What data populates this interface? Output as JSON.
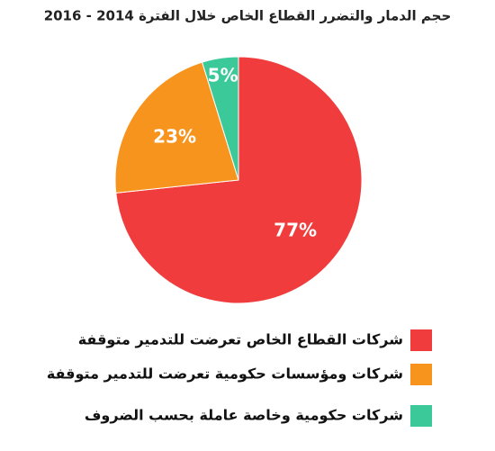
{
  "chart_data": {
    "type": "pie",
    "title": "حجم الدمار والتضرر القطاع الخاص خلال الفترة 2014 - 2016",
    "categories": [
      "شركات القطاع الخاص تعرضت للتدمير متوقفة",
      "شركات ومؤسسات حكومية تعرضت للتدمير متوقفة",
      "شركات حكومية وخاصة عاملة بحسب الضروف"
    ],
    "values": [
      77,
      23,
      5
    ],
    "value_labels": [
      "77%",
      "23%",
      "5%"
    ],
    "colors": [
      "#f03c3c",
      "#f7941d",
      "#3cc99a"
    ]
  }
}
